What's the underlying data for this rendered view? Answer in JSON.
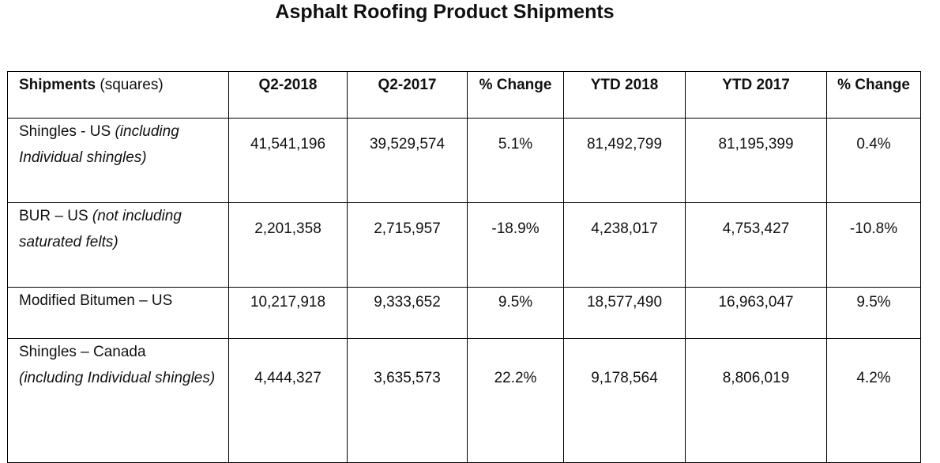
{
  "title": "Asphalt Roofing Product Shipments",
  "table": {
    "header": {
      "first_bold": "Shipments",
      "first_normal": "(squares)",
      "columns": [
        "Q2-2018",
        "Q2-2017",
        "% Change",
        "YTD 2018",
        "YTD 2017",
        "% Change"
      ]
    },
    "rows": [
      {
        "label": "Shingles - US",
        "note": "(including Individual shingles)",
        "values": [
          "41,541,196",
          "39,529,574",
          "5.1%",
          "81,492,799",
          "81,195,399",
          "0.4%"
        ]
      },
      {
        "label": "BUR – US",
        "note": "(not including saturated felts)",
        "values": [
          "2,201,358",
          "2,715,957",
          "-18.9%",
          "4,238,017",
          "4,753,427",
          "-10.8%"
        ]
      },
      {
        "label": "Modified Bitumen – US",
        "note": "",
        "values": [
          "10,217,918",
          "9,333,652",
          "9.5%",
          "18,577,490",
          "16,963,047",
          "9.5%"
        ]
      },
      {
        "label": "Shingles – Canada",
        "note": "(including Individual shingles)",
        "values": [
          "4,444,327",
          "3,635,573",
          "22.2%",
          "9,178,564",
          "8,806,019",
          "4.2%"
        ]
      }
    ]
  }
}
